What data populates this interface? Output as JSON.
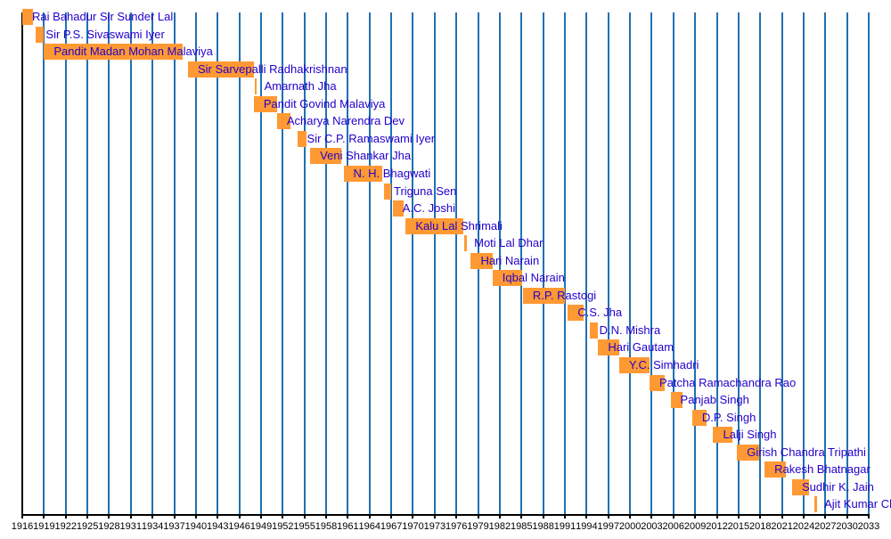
{
  "chart_data": {
    "type": "bar",
    "subtype": "timeline",
    "title": "",
    "xlabel": "",
    "ylabel": "",
    "legend": "none",
    "grid": "vertical-on",
    "x_axis": {
      "min": 1916,
      "max": 2033,
      "tick_interval": 3,
      "tick_labels": [
        1916,
        1919,
        1922,
        1925,
        1928,
        1931,
        1934,
        1937,
        1940,
        1943,
        1946,
        1949,
        1952,
        1955,
        1958,
        1961,
        1964,
        1967,
        1970,
        1973,
        1976,
        1979,
        1982,
        1985,
        1988,
        1991,
        1994,
        1997,
        2000,
        2003,
        2006,
        2009,
        2012,
        2015,
        2018,
        2021,
        2024,
        2027,
        2030,
        2033
      ]
    },
    "people": [
      {
        "name": "Rai Bahadur Sir Sunder Lal",
        "start": 1916.0,
        "end": 1917.5
      },
      {
        "name": "Sir P.S. Sivaswami Iyer",
        "start": 1917.9,
        "end": 1919.0
      },
      {
        "name": "Pandit Madan Mohan Malaviya",
        "start": 1919.0,
        "end": 1938.2
      },
      {
        "name": "Sir Sarvepalli Radhakrishnan",
        "start": 1938.9,
        "end": 1948.0
      },
      {
        "name": "Amarnath Jha",
        "start": 1948.1,
        "end": 1948.45
      },
      {
        "name": "Pandit Govind Malaviya",
        "start": 1948.0,
        "end": 1951.2
      },
      {
        "name": "Acharya Narendra Dev",
        "start": 1951.2,
        "end": 1953.1
      },
      {
        "name": "Sir C.P. Ramaswami Iyer",
        "start": 1954.0,
        "end": 1955.3
      },
      {
        "name": "Veni Shankar Jha",
        "start": 1955.8,
        "end": 1960.1
      },
      {
        "name": "N. H. Bhagwati",
        "start": 1960.4,
        "end": 1965.8
      },
      {
        "name": "Triguna Sen",
        "start": 1966.0,
        "end": 1967.0
      },
      {
        "name": "A.C. Joshi",
        "start": 1967.2,
        "end": 1968.7
      },
      {
        "name": "Kalu Lal Shrimali",
        "start": 1969.0,
        "end": 1977.0
      },
      {
        "name": "Moti Lal Dhar",
        "start": 1977.1,
        "end": 1977.4
      },
      {
        "name": "Hari Narain",
        "start": 1978.0,
        "end": 1981.0
      },
      {
        "name": "Iqbal Narain",
        "start": 1981.0,
        "end": 1985.1
      },
      {
        "name": "R.P. Rastogi",
        "start": 1985.2,
        "end": 1991.0
      },
      {
        "name": "C.S. Jha",
        "start": 1991.4,
        "end": 1993.6
      },
      {
        "name": "D.N. Mishra",
        "start": 1994.4,
        "end": 1995.6
      },
      {
        "name": "Hari Gautam",
        "start": 1995.6,
        "end": 1998.5
      },
      {
        "name": "Y.C. Simhadri",
        "start": 1998.5,
        "end": 2002.7
      },
      {
        "name": "Patcha Ramachandra Rao",
        "start": 2002.7,
        "end": 2004.8
      },
      {
        "name": "Panjab Singh",
        "start": 2005.6,
        "end": 2007.2
      },
      {
        "name": "D.P. Singh",
        "start": 2008.6,
        "end": 2010.6
      },
      {
        "name": "Lalji Singh",
        "start": 2011.5,
        "end": 2014.2
      },
      {
        "name": "Girish Chandra Tripathi",
        "start": 2014.8,
        "end": 2017.8
      },
      {
        "name": "Rakesh Bhatnagar",
        "start": 2018.6,
        "end": 2021.5
      },
      {
        "name": "Sudhir K. Jain",
        "start": 2022.4,
        "end": 2024.7
      },
      {
        "name": "Ajit Kumar Ch",
        "start": 2025.5,
        "end": 2025.8
      }
    ],
    "colors": {
      "bar": "#FF9933",
      "name_label": "#2200CC",
      "gridline": "#2070B4",
      "first_gridline": "#000000",
      "axis": "#000000",
      "tick_label": "#000000",
      "background": "#FFFFFF"
    }
  }
}
